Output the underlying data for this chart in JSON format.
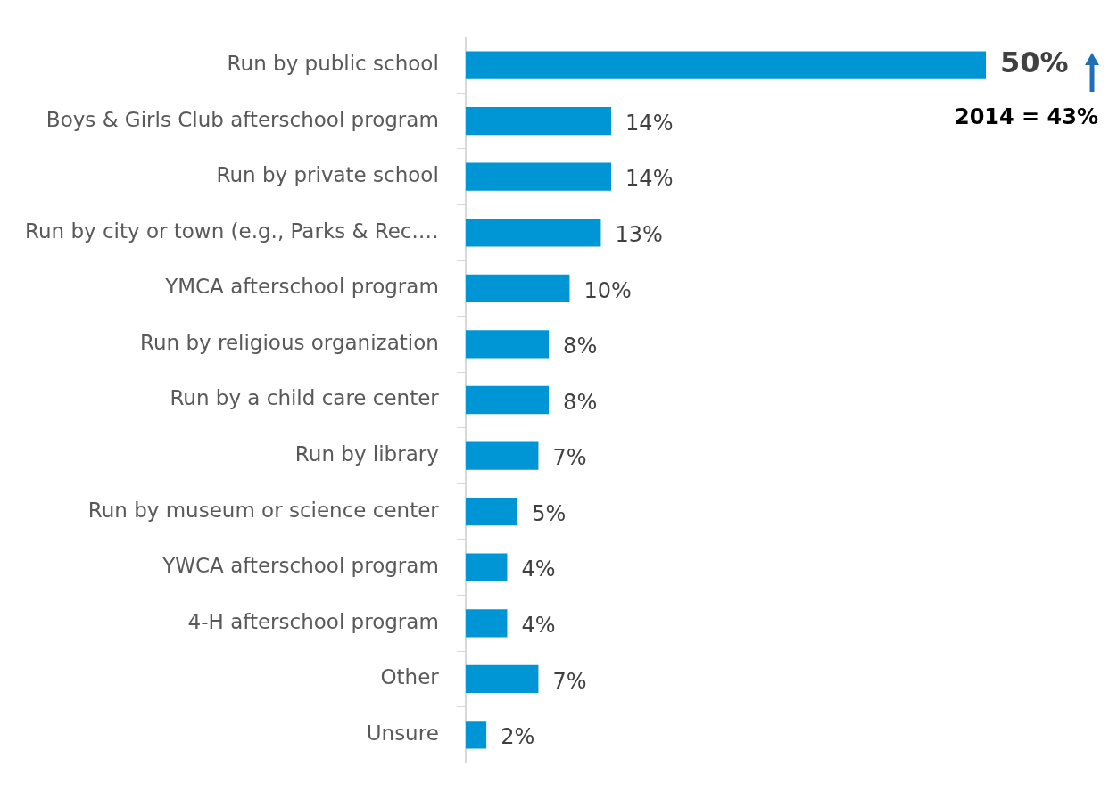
{
  "chart_data": {
    "type": "bar",
    "orientation": "horizontal",
    "categories": [
      "Run by public school",
      "Boys & Girls Club afterschool program",
      "Run by private school",
      "Run by city or town (e.g., Parks & Rec.…",
      "YMCA afterschool program",
      "Run by religious organization",
      "Run by a child care center",
      "Run by library",
      "Run by museum or science center",
      "YWCA afterschool program",
      "4-H afterschool program",
      "Other",
      "Unsure"
    ],
    "values": [
      50,
      14,
      14,
      13,
      10,
      8,
      8,
      7,
      5,
      4,
      4,
      7,
      2
    ],
    "color": "#0096d6",
    "value_labels": [
      "50%",
      "14%",
      "14%",
      "13%",
      "10%",
      "8%",
      "8%",
      "7%",
      "5%",
      "4%",
      "4%",
      "7%",
      "2%"
    ],
    "annotations": [
      "2014 = 43%"
    ],
    "legend": false
  }
}
